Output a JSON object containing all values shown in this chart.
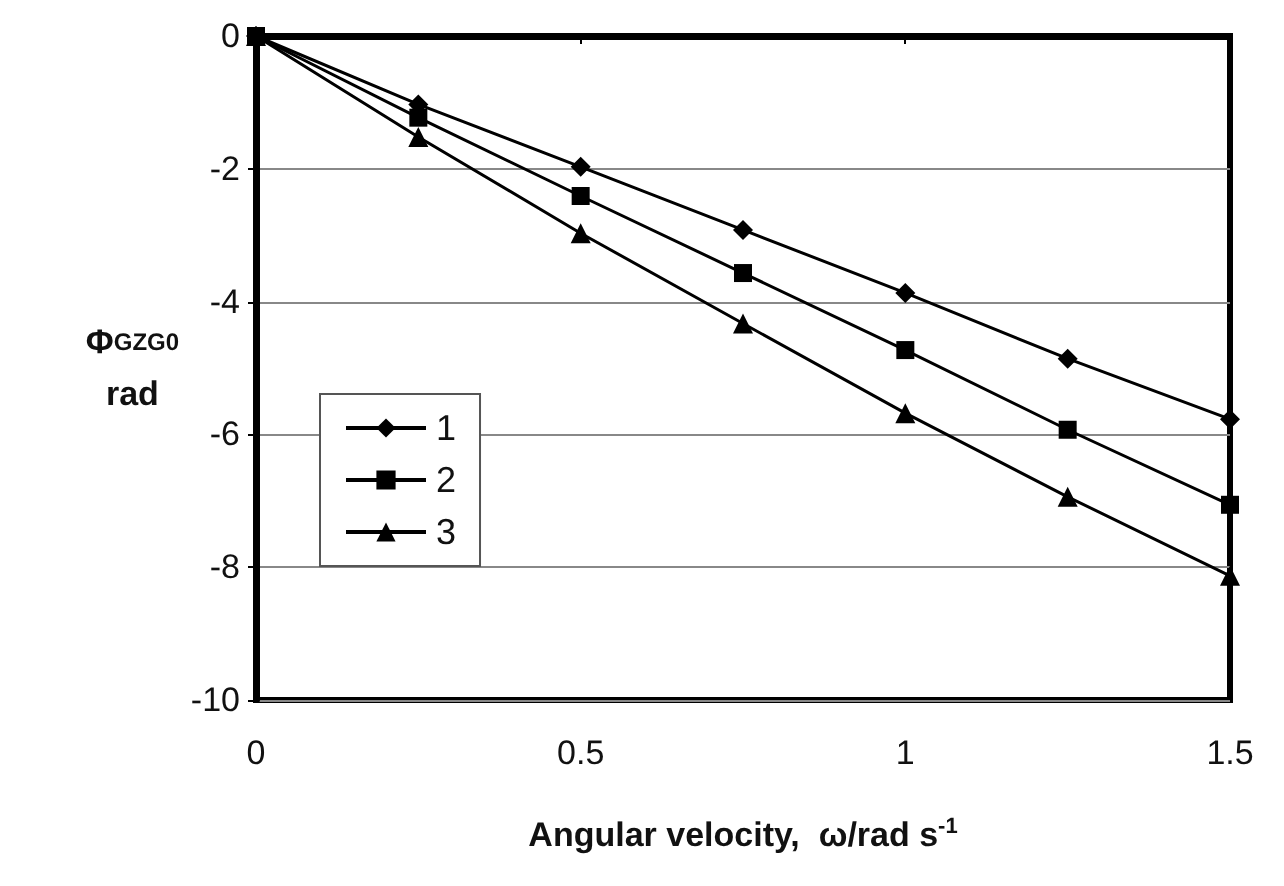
{
  "chart_data": {
    "type": "line",
    "xlabel": "Angular velocity,  ω/rad s$^{-1}$",
    "ylabel": "Φ$_{GZG0}$ rad",
    "x": [
      0,
      0.25,
      0.5,
      0.75,
      1,
      1.25,
      1.5
    ],
    "series": [
      {
        "name": "1",
        "color": "#000000",
        "marker": "diamond",
        "values": [
          0,
          -1.03,
          -1.97,
          -2.92,
          -3.87,
          -4.86,
          -5.77
        ]
      },
      {
        "name": "2",
        "color": "#000000",
        "marker": "square",
        "values": [
          0,
          -1.23,
          -2.41,
          -3.57,
          -4.73,
          -5.93,
          -7.06
        ]
      },
      {
        "name": "3",
        "color": "#000000",
        "marker": "triangle",
        "values": [
          0,
          -1.52,
          -2.97,
          -4.33,
          -5.68,
          -6.94,
          -8.13
        ]
      }
    ],
    "xlim": [
      0,
      1.5
    ],
    "xticks": [
      0,
      0.5,
      1,
      1.5
    ],
    "ylim": [
      -10,
      0
    ],
    "yticks": [
      0,
      -2,
      -4,
      -6,
      -8,
      -10
    ],
    "grid": "y",
    "legend": "left",
    "line_style": "solid"
  }
}
